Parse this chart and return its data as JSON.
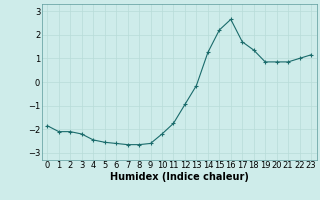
{
  "x": [
    0,
    1,
    2,
    3,
    4,
    5,
    6,
    7,
    8,
    9,
    10,
    11,
    12,
    13,
    14,
    15,
    16,
    17,
    18,
    19,
    20,
    21,
    22,
    23
  ],
  "y": [
    -1.85,
    -2.1,
    -2.1,
    -2.2,
    -2.45,
    -2.55,
    -2.6,
    -2.65,
    -2.65,
    -2.6,
    -2.2,
    -1.75,
    -0.95,
    -0.15,
    1.25,
    2.2,
    2.65,
    1.7,
    1.35,
    0.85,
    0.85,
    0.85,
    1.0,
    1.15
  ],
  "xlabel": "Humidex (Indice chaleur)",
  "xlim": [
    -0.5,
    23.5
  ],
  "ylim": [
    -3.3,
    3.3
  ],
  "yticks": [
    -3,
    -2,
    -1,
    0,
    1,
    2,
    3
  ],
  "xtick_labels": [
    "0",
    "1",
    "2",
    "3",
    "4",
    "5",
    "6",
    "7",
    "8",
    "9",
    "10",
    "11",
    "12",
    "13",
    "14",
    "15",
    "16",
    "17",
    "18",
    "19",
    "20",
    "21",
    "22",
    "23"
  ],
  "line_color": "#1a6b6b",
  "marker": "+",
  "bg_color": "#ceecea",
  "grid_color": "#b8dcd8",
  "tick_fontsize": 6,
  "xlabel_fontsize": 7
}
